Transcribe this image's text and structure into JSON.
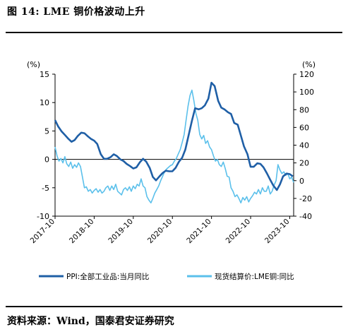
{
  "header": {
    "title": "图 14: LME 铜价格波动上升"
  },
  "footer": {
    "source": "资料来源：Wind，国泰君安证券研究"
  },
  "chart_data": {
    "type": "line",
    "left_axis_unit": "(%)",
    "right_axis_unit": "(%)",
    "left_ylim": [
      -10,
      15
    ],
    "left_ticks": [
      15,
      10,
      5,
      0,
      -5,
      -10
    ],
    "right_ylim": [
      -40,
      120
    ],
    "right_ticks": [
      120,
      100,
      80,
      60,
      40,
      20,
      0,
      -20,
      -40
    ],
    "x_range": [
      2017.75,
      2023.85
    ],
    "x_ticks": [
      {
        "label": "2017-10",
        "x": 2017.75
      },
      {
        "label": "2018-10",
        "x": 2018.75
      },
      {
        "label": "2019-10",
        "x": 2019.75
      },
      {
        "label": "2020-10",
        "x": 2020.75
      },
      {
        "label": "2021-10",
        "x": 2021.75
      },
      {
        "label": "2022-10",
        "x": 2022.75
      },
      {
        "label": "2023-10",
        "x": 2023.75
      }
    ],
    "legend_position": "bottom",
    "series": [
      {
        "name": "PPI:全部工业品:当月同比",
        "axis": "left",
        "color": "#1f5fa6",
        "points": [
          [
            2017.75,
            6.9
          ],
          [
            2017.83,
            5.8
          ],
          [
            2017.92,
            4.9
          ],
          [
            2018.0,
            4.3
          ],
          [
            2018.08,
            3.7
          ],
          [
            2018.17,
            3.1
          ],
          [
            2018.25,
            3.4
          ],
          [
            2018.33,
            4.1
          ],
          [
            2018.42,
            4.7
          ],
          [
            2018.5,
            4.6
          ],
          [
            2018.58,
            4.1
          ],
          [
            2018.67,
            3.6
          ],
          [
            2018.75,
            3.3
          ],
          [
            2018.83,
            2.7
          ],
          [
            2018.92,
            0.9
          ],
          [
            2019.0,
            0.1
          ],
          [
            2019.08,
            0.1
          ],
          [
            2019.17,
            0.4
          ],
          [
            2019.25,
            0.9
          ],
          [
            2019.33,
            0.6
          ],
          [
            2019.42,
            0.0
          ],
          [
            2019.5,
            -0.3
          ],
          [
            2019.58,
            -0.8
          ],
          [
            2019.67,
            -1.2
          ],
          [
            2019.75,
            -1.6
          ],
          [
            2019.83,
            -1.4
          ],
          [
            2019.92,
            -0.5
          ],
          [
            2020.0,
            0.1
          ],
          [
            2020.08,
            -0.4
          ],
          [
            2020.17,
            -1.5
          ],
          [
            2020.25,
            -3.1
          ],
          [
            2020.33,
            -3.7
          ],
          [
            2020.42,
            -3.0
          ],
          [
            2020.5,
            -2.4
          ],
          [
            2020.58,
            -2.0
          ],
          [
            2020.67,
            -2.1
          ],
          [
            2020.75,
            -2.1
          ],
          [
            2020.83,
            -1.5
          ],
          [
            2020.92,
            -0.4
          ],
          [
            2021.0,
            0.3
          ],
          [
            2021.08,
            1.7
          ],
          [
            2021.17,
            4.4
          ],
          [
            2021.25,
            6.8
          ],
          [
            2021.33,
            9.0
          ],
          [
            2021.42,
            8.8
          ],
          [
            2021.5,
            9.0
          ],
          [
            2021.58,
            9.5
          ],
          [
            2021.67,
            10.7
          ],
          [
            2021.75,
            13.5
          ],
          [
            2021.83,
            12.9
          ],
          [
            2021.92,
            10.3
          ],
          [
            2022.0,
            9.1
          ],
          [
            2022.08,
            8.8
          ],
          [
            2022.17,
            8.3
          ],
          [
            2022.25,
            8.0
          ],
          [
            2022.33,
            6.4
          ],
          [
            2022.42,
            6.1
          ],
          [
            2022.5,
            4.2
          ],
          [
            2022.58,
            2.3
          ],
          [
            2022.67,
            0.9
          ],
          [
            2022.75,
            -1.3
          ],
          [
            2022.83,
            -1.3
          ],
          [
            2022.92,
            -0.7
          ],
          [
            2023.0,
            -0.8
          ],
          [
            2023.08,
            -1.4
          ],
          [
            2023.17,
            -2.5
          ],
          [
            2023.25,
            -3.6
          ],
          [
            2023.33,
            -4.6
          ],
          [
            2023.42,
            -5.4
          ],
          [
            2023.5,
            -4.4
          ],
          [
            2023.58,
            -3.0
          ],
          [
            2023.67,
            -2.5
          ],
          [
            2023.75,
            -2.6
          ],
          [
            2023.83,
            -3.0
          ]
        ]
      },
      {
        "name": "现货结算价:LME铜:同比",
        "axis": "right",
        "color": "#5bc0eb",
        "points": [
          [
            2017.75,
            38
          ],
          [
            2017.8,
            28
          ],
          [
            2017.85,
            22
          ],
          [
            2017.9,
            25
          ],
          [
            2017.95,
            20
          ],
          [
            2018.0,
            27
          ],
          [
            2018.05,
            19
          ],
          [
            2018.1,
            16
          ],
          [
            2018.15,
            21
          ],
          [
            2018.2,
            14
          ],
          [
            2018.25,
            18
          ],
          [
            2018.3,
            15
          ],
          [
            2018.35,
            20
          ],
          [
            2018.4,
            16
          ],
          [
            2018.45,
            4
          ],
          [
            2018.5,
            -8
          ],
          [
            2018.55,
            -7
          ],
          [
            2018.6,
            -12
          ],
          [
            2018.65,
            -10
          ],
          [
            2018.7,
            -14
          ],
          [
            2018.75,
            -11
          ],
          [
            2018.8,
            -9
          ],
          [
            2018.85,
            -13
          ],
          [
            2018.9,
            -10
          ],
          [
            2018.95,
            -14
          ],
          [
            2019.0,
            -12
          ],
          [
            2019.05,
            -8
          ],
          [
            2019.1,
            -6
          ],
          [
            2019.15,
            -11
          ],
          [
            2019.2,
            -6
          ],
          [
            2019.25,
            -10
          ],
          [
            2019.3,
            -4
          ],
          [
            2019.35,
            -12
          ],
          [
            2019.4,
            -14
          ],
          [
            2019.45,
            -16
          ],
          [
            2019.5,
            -10
          ],
          [
            2019.55,
            -8
          ],
          [
            2019.6,
            -11
          ],
          [
            2019.65,
            -7
          ],
          [
            2019.7,
            -12
          ],
          [
            2019.75,
            -6
          ],
          [
            2019.8,
            -9
          ],
          [
            2019.85,
            -4
          ],
          [
            2019.9,
            -6
          ],
          [
            2019.95,
            2
          ],
          [
            2020.0,
            -6
          ],
          [
            2020.05,
            -8
          ],
          [
            2020.1,
            -18
          ],
          [
            2020.15,
            -22
          ],
          [
            2020.2,
            -25
          ],
          [
            2020.25,
            -20
          ],
          [
            2020.3,
            -14
          ],
          [
            2020.35,
            -10
          ],
          [
            2020.4,
            -6
          ],
          [
            2020.45,
            0
          ],
          [
            2020.5,
            5
          ],
          [
            2020.55,
            10
          ],
          [
            2020.6,
            13
          ],
          [
            2020.65,
            15
          ],
          [
            2020.7,
            17
          ],
          [
            2020.75,
            18
          ],
          [
            2020.8,
            22
          ],
          [
            2020.85,
            25
          ],
          [
            2020.9,
            30
          ],
          [
            2020.95,
            35
          ],
          [
            2021.0,
            43
          ],
          [
            2021.05,
            52
          ],
          [
            2021.1,
            68
          ],
          [
            2021.15,
            84
          ],
          [
            2021.2,
            96
          ],
          [
            2021.25,
            102
          ],
          [
            2021.3,
            90
          ],
          [
            2021.35,
            76
          ],
          [
            2021.4,
            68
          ],
          [
            2021.45,
            52
          ],
          [
            2021.5,
            47
          ],
          [
            2021.55,
            51
          ],
          [
            2021.6,
            42
          ],
          [
            2021.65,
            45
          ],
          [
            2021.7,
            38
          ],
          [
            2021.75,
            35
          ],
          [
            2021.8,
            28
          ],
          [
            2021.85,
            22
          ],
          [
            2021.9,
            24
          ],
          [
            2021.95,
            18
          ],
          [
            2022.0,
            16
          ],
          [
            2022.05,
            21
          ],
          [
            2022.1,
            14
          ],
          [
            2022.15,
            5
          ],
          [
            2022.2,
            4
          ],
          [
            2022.25,
            -8
          ],
          [
            2022.3,
            -12
          ],
          [
            2022.35,
            -18
          ],
          [
            2022.4,
            -16
          ],
          [
            2022.45,
            -20
          ],
          [
            2022.5,
            -25
          ],
          [
            2022.55,
            -19
          ],
          [
            2022.6,
            -22
          ],
          [
            2022.65,
            -18
          ],
          [
            2022.7,
            -24
          ],
          [
            2022.75,
            -20
          ],
          [
            2022.8,
            -17
          ],
          [
            2022.85,
            -13
          ],
          [
            2022.9,
            -15
          ],
          [
            2022.95,
            -10
          ],
          [
            2023.0,
            -15
          ],
          [
            2023.05,
            -8
          ],
          [
            2023.1,
            -12
          ],
          [
            2023.15,
            -12
          ],
          [
            2023.2,
            -6
          ],
          [
            2023.25,
            -15
          ],
          [
            2023.3,
            -12
          ],
          [
            2023.35,
            -5
          ],
          [
            2023.4,
            0
          ],
          [
            2023.45,
            18
          ],
          [
            2023.5,
            12
          ],
          [
            2023.55,
            8
          ],
          [
            2023.6,
            10
          ],
          [
            2023.65,
            6
          ],
          [
            2023.7,
            8
          ],
          [
            2023.75,
            2
          ],
          [
            2023.8,
            4
          ],
          [
            2023.85,
            -2
          ]
        ]
      }
    ]
  }
}
